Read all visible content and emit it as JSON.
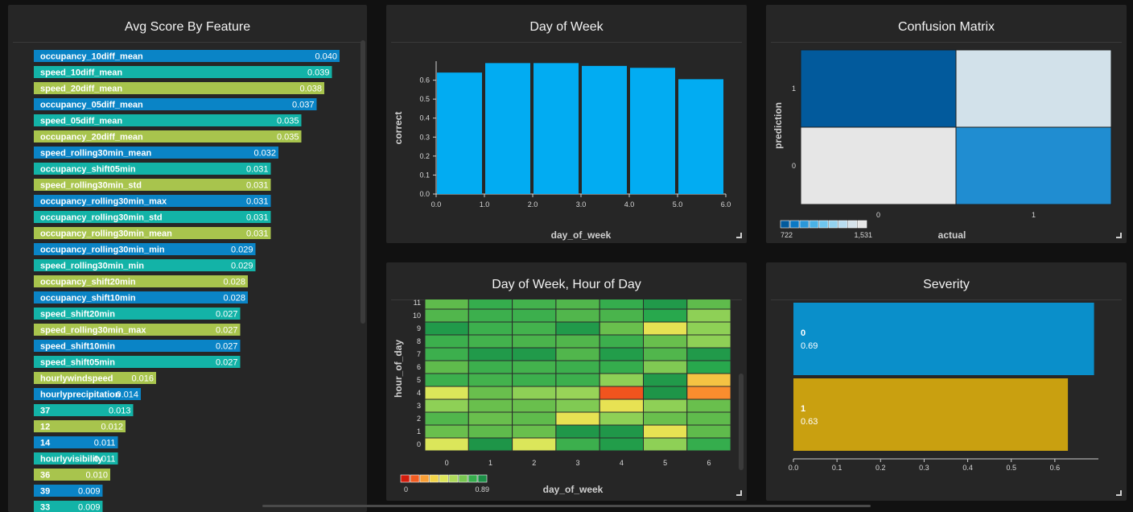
{
  "panels": {
    "features": {
      "title": "Avg Score By Feature"
    },
    "day_of_week": {
      "title": "Day of Week"
    },
    "confusion": {
      "title": "Confusion Matrix"
    },
    "heatmap": {
      "title": "Day of Week, Hour of Day"
    },
    "severity": {
      "title": "Severity"
    }
  },
  "colors": {
    "feature_cycle": [
      "#0a84c6",
      "#13b3a7",
      "#a8c44d"
    ],
    "day_bar": "#02acf2",
    "severity": [
      "#0a8fca",
      "#c9a010"
    ],
    "confusion_scale": [
      "#025a9c",
      "#0b78c4",
      "#2b97d8",
      "#4ab2e6",
      "#6fc6ef",
      "#93d2ef",
      "#b8dcef",
      "#d5e2ea",
      "#e6e6e6"
    ],
    "heat_scale": [
      "#d21c0c",
      "#ef4c1c",
      "#fa8c2e",
      "#f8b23e",
      "#f0df4c",
      "#dde65a",
      "#b9de5c",
      "#8ccf56",
      "#64bd4c",
      "#27a84d",
      "#1c8f47"
    ]
  },
  "chart_data": [
    {
      "id": "features",
      "type": "bar",
      "orientation": "horizontal",
      "title": "Avg Score By Feature",
      "xlim": [
        0,
        0.04
      ],
      "categories": [
        "occupancy_10diff_mean",
        "speed_10diff_mean",
        "speed_20diff_mean",
        "occupancy_05diff_mean",
        "speed_05diff_mean",
        "occupancy_20diff_mean",
        "speed_rolling30min_mean",
        "occupancy_shift05min",
        "speed_rolling30min_std",
        "occupancy_rolling30min_max",
        "occupancy_rolling30min_std",
        "occupancy_rolling30min_mean",
        "occupancy_rolling30min_min",
        "speed_rolling30min_min",
        "occupancy_shift20min",
        "occupancy_shift10min",
        "speed_shift20min",
        "speed_rolling30min_max",
        "speed_shift10min",
        "speed_shift05min",
        "hourlywindspeed",
        "hourlyprecipitation",
        "37",
        "12",
        "14",
        "hourlyvisibility",
        "36",
        "39",
        "33"
      ],
      "values": [
        0.04,
        0.039,
        0.038,
        0.037,
        0.035,
        0.035,
        0.032,
        0.031,
        0.031,
        0.031,
        0.031,
        0.031,
        0.029,
        0.029,
        0.028,
        0.028,
        0.027,
        0.027,
        0.027,
        0.027,
        0.016,
        0.014,
        0.013,
        0.012,
        0.011,
        0.011,
        0.01,
        0.009,
        0.009
      ],
      "value_labels": [
        "0.040",
        "0.039",
        "0.038",
        "0.037",
        "0.035",
        "0.035",
        "0.032",
        "0.031",
        "0.031",
        "0.031",
        "0.031",
        "0.031",
        "0.029",
        "0.029",
        "0.028",
        "0.028",
        "0.027",
        "0.027",
        "0.027",
        "0.027",
        "0.016",
        "0.014",
        "0.013",
        "0.012",
        "0.011",
        "0.011",
        "0.010",
        "0.009",
        "0.009"
      ]
    },
    {
      "id": "day_of_week",
      "type": "bar",
      "title": "Day of Week",
      "xlabel": "day_of_week",
      "ylabel": "correct",
      "xlim": [
        0,
        6
      ],
      "ylim": [
        0,
        0.7
      ],
      "x_ticks": [
        "0.0",
        "1.0",
        "2.0",
        "3.0",
        "4.0",
        "5.0",
        "6.0"
      ],
      "y_ticks": [
        "0.0",
        "0.1",
        "0.2",
        "0.3",
        "0.4",
        "0.5",
        "0.6"
      ],
      "x": [
        0,
        1,
        2,
        3,
        4,
        5
      ],
      "values": [
        0.64,
        0.69,
        0.69,
        0.675,
        0.665,
        0.605
      ]
    },
    {
      "id": "confusion",
      "type": "heatmap",
      "title": "Confusion Matrix",
      "xlabel": "actual",
      "ylabel": "prediction",
      "x_categories": [
        "0",
        "1"
      ],
      "y_categories": [
        "1",
        "0"
      ],
      "cells": [
        [
          722,
          1420
        ],
        [
          1531,
          890
        ]
      ],
      "legend_min_label": "722",
      "legend_max_label": "1,531",
      "range": [
        722,
        1531
      ]
    },
    {
      "id": "heatmap",
      "type": "heatmap",
      "title": "Day of Week, Hour of Day",
      "xlabel": "day_of_week",
      "ylabel": "hour_of_day",
      "x_categories": [
        "0",
        "1",
        "2",
        "3",
        "4",
        "5",
        "6"
      ],
      "y_categories": [
        "11",
        "10",
        "9",
        "8",
        "7",
        "6",
        "5",
        "4",
        "3",
        "2",
        "1",
        "0"
      ],
      "range": [
        0,
        0.89
      ],
      "legend_min_label": "0",
      "legend_max_label": "0.89",
      "cells": [
        [
          0.72,
          0.78,
          0.76,
          0.74,
          0.78,
          0.85,
          0.72
        ],
        [
          0.74,
          0.77,
          0.77,
          0.74,
          0.75,
          0.8,
          0.62
        ],
        [
          0.85,
          0.77,
          0.76,
          0.85,
          0.7,
          0.4,
          0.62
        ],
        [
          0.77,
          0.76,
          0.75,
          0.74,
          0.77,
          0.7,
          0.62
        ],
        [
          0.77,
          0.85,
          0.85,
          0.74,
          0.84,
          0.74,
          0.85
        ],
        [
          0.72,
          0.77,
          0.76,
          0.77,
          0.78,
          0.65,
          0.8
        ],
        [
          0.77,
          0.76,
          0.77,
          0.77,
          0.62,
          0.85,
          0.3
        ],
        [
          0.45,
          0.7,
          0.62,
          0.6,
          0.1,
          0.87,
          0.18
        ],
        [
          0.62,
          0.7,
          0.7,
          0.65,
          0.4,
          0.62,
          0.7
        ],
        [
          0.74,
          0.7,
          0.72,
          0.4,
          0.62,
          0.7,
          0.72
        ],
        [
          0.7,
          0.72,
          0.7,
          0.86,
          0.86,
          0.4,
          0.72
        ],
        [
          0.45,
          0.87,
          0.45,
          0.77,
          0.84,
          0.62,
          0.78
        ]
      ]
    },
    {
      "id": "severity",
      "type": "bar",
      "orientation": "horizontal",
      "title": "Severity",
      "xlim": [
        0,
        0.7
      ],
      "x_ticks": [
        "0.0",
        "0.1",
        "0.2",
        "0.3",
        "0.4",
        "0.5",
        "0.6"
      ],
      "categories": [
        "0",
        "1"
      ],
      "values": [
        0.69,
        0.63
      ],
      "value_labels": [
        "0.69",
        "0.63"
      ]
    }
  ]
}
